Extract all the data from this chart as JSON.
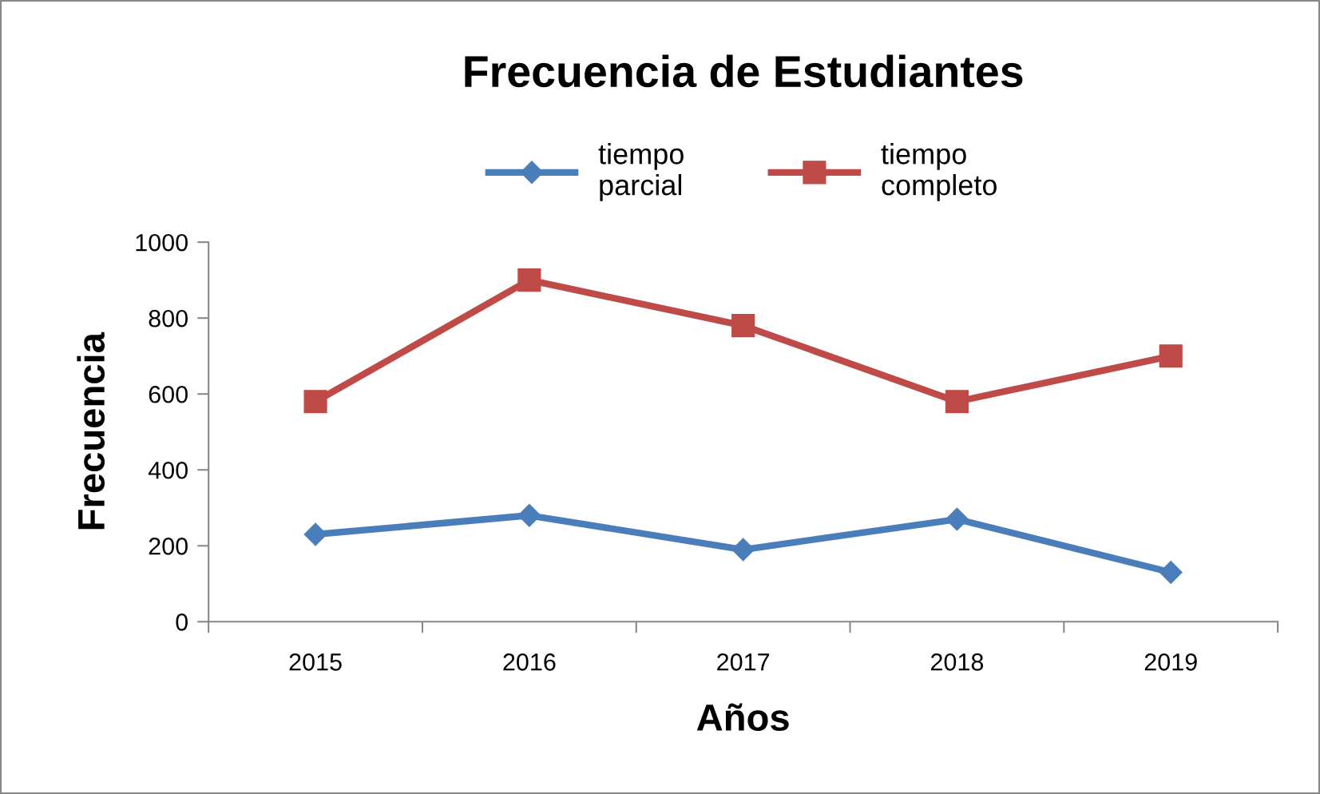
{
  "chart_data": {
    "type": "line",
    "title": "Frecuencia de Estudiantes",
    "xlabel": "Años",
    "ylabel": "Frecuencia",
    "categories": [
      "2015",
      "2016",
      "2017",
      "2018",
      "2019"
    ],
    "series": [
      {
        "name": "tiempo\nparcial",
        "color": "#4a7ebb",
        "marker": "diamond",
        "values": [
          230,
          280,
          190,
          270,
          130
        ]
      },
      {
        "name": "tiempo\ncompleto",
        "color": "#be4b48",
        "marker": "square",
        "values": [
          580,
          900,
          780,
          580,
          700
        ]
      }
    ],
    "ylim": [
      0,
      1000
    ],
    "yticks": [
      0,
      200,
      400,
      600,
      800,
      1000
    ],
    "grid": false,
    "legend": "top"
  }
}
